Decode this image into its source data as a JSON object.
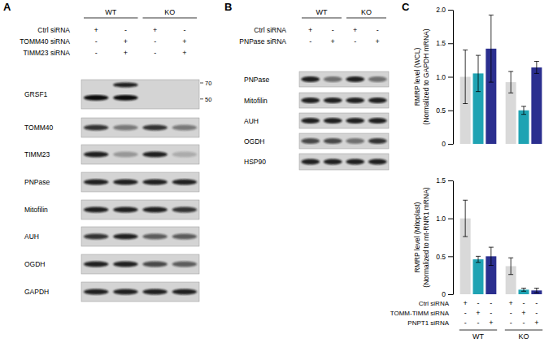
{
  "panels": [
    "A",
    "B",
    "C"
  ],
  "blots": [
    {
      "groups": [
        "WT",
        "KO"
      ],
      "treatments": [
        {
          "label": "Ctrl siRNA",
          "signs": [
            "+",
            "-",
            "+",
            "-"
          ]
        },
        {
          "label": "TOMM40 siRNA",
          "signs": [
            "-",
            "+",
            "-",
            "+"
          ]
        },
        {
          "label": "TIMM23 siRNA",
          "signs": [
            "-",
            "+",
            "-",
            "+"
          ]
        }
      ],
      "markers": [
        70,
        50
      ],
      "rows": [
        {
          "label": "GRSF1",
          "bands": [
            1,
            1,
            0,
            0
          ],
          "upper_bands": [
            0,
            0.9,
            0,
            0
          ]
        },
        {
          "label": "TOMM40",
          "bands": [
            0.8,
            0.45,
            0.8,
            0.45
          ]
        },
        {
          "label": "TIMM23",
          "bands": [
            0.9,
            0.3,
            0.9,
            0.2
          ]
        },
        {
          "label": "PNPase",
          "bands": [
            0.9,
            0.9,
            0.9,
            0.9
          ]
        },
        {
          "label": "Mitofilin",
          "bands": [
            0.9,
            0.9,
            0.9,
            0.8
          ]
        },
        {
          "label": "AUH",
          "bands": [
            0.8,
            0.9,
            0.6,
            0.6
          ]
        },
        {
          "label": "OGDH",
          "bands": [
            0.9,
            0.9,
            0.7,
            0.6
          ]
        },
        {
          "label": "GAPDH",
          "bands": [
            0.9,
            0.9,
            0.9,
            0.9
          ]
        }
      ]
    },
    {
      "groups": [
        "WT",
        "KO"
      ],
      "treatments": [
        {
          "label": "Ctrl siRNA",
          "signs": [
            "+",
            "-",
            "+",
            "-"
          ]
        },
        {
          "label": "PNPase siRNA",
          "signs": [
            "-",
            "+",
            "-",
            "+"
          ]
        }
      ],
      "rows": [
        {
          "label": "PNPase",
          "bands": [
            0.9,
            0.5,
            0.9,
            0.5
          ]
        },
        {
          "label": "Mitofilin",
          "bands": [
            0.9,
            0.9,
            0.9,
            0.9
          ]
        },
        {
          "label": "AUH",
          "bands": [
            0.9,
            0.9,
            0.9,
            0.9
          ]
        },
        {
          "label": "OGDH",
          "bands": [
            0.7,
            0.7,
            0.5,
            0.8
          ]
        },
        {
          "label": "HSP90",
          "bands": [
            0.9,
            0.9,
            0.9,
            0.9
          ]
        }
      ]
    }
  ],
  "chart_data": [
    {
      "type": "bar",
      "y_label": [
        "RMRP level (WCL)",
        "(Normalized to GAPDH mRNA)"
      ],
      "categories": [
        null,
        null
      ],
      "ylim": [
        0,
        2
      ],
      "yticks": [
        0,
        0.5,
        {
          "value": 1,
          "label": "1.0"
        },
        1.5,
        {
          "value": 2,
          "label": "2.0"
        }
      ],
      "tick_labels": "y",
      "series": [
        {
          "color": "#d9d9d9",
          "values": [
            1.0,
            0.92
          ],
          "errors": [
            0.4,
            0.16
          ]
        },
        {
          "color": "#1fa3b3",
          "values": [
            1.05,
            0.5
          ],
          "errors": [
            0.27,
            0.06
          ]
        },
        {
          "color": "#2b2f8f",
          "values": [
            1.42,
            1.14
          ],
          "errors": [
            0.5,
            0.09
          ]
        }
      ]
    },
    {
      "type": "bar",
      "y_label": [
        "RMRP level (Mitoplast)",
        "(Normalized to mt-RNR1 mRNA)"
      ],
      "categories": [
        "WT",
        "KO"
      ],
      "ylim": [
        0,
        1.5
      ],
      "yticks": [
        0,
        0.5,
        {
          "value": 1,
          "label": "1.0"
        },
        1.5
      ],
      "series": [
        {
          "name": "Ctrl siRNA",
          "color": "#d9d9d9",
          "values": [
            1.0,
            0.37
          ],
          "errors": [
            0.24,
            0.11
          ]
        },
        {
          "name": "TOMM-TIMM siRNA",
          "color": "#1fa3b3",
          "values": [
            0.46,
            0.06
          ],
          "errors": [
            0.04,
            0.02
          ]
        },
        {
          "name": "PNPT1 siRNA",
          "color": "#2b2f8f",
          "values": [
            0.5,
            0.05
          ],
          "errors": [
            0.12,
            0.03
          ]
        }
      ]
    }
  ],
  "treatment_table": {
    "rows": [
      [
        "+",
        "-",
        "-",
        "+",
        "-",
        "-"
      ],
      [
        "-",
        "+",
        "-",
        "-",
        "+",
        "-"
      ],
      [
        "-",
        "-",
        "+",
        "-",
        "-",
        "+"
      ]
    ]
  }
}
